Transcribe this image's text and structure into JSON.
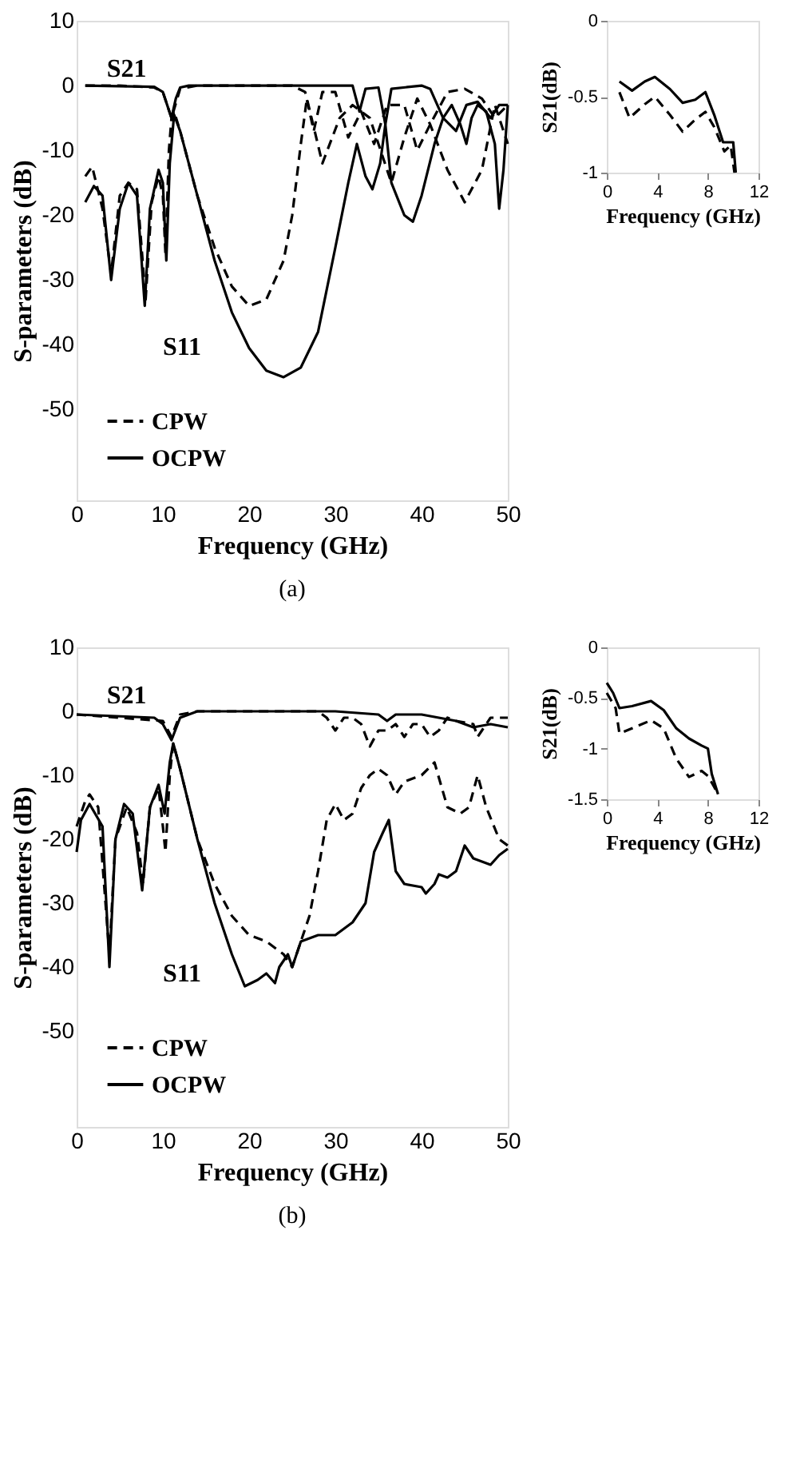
{
  "chart_data": [
    {
      "type": "line",
      "xlabel": "Frequency (GHz)",
      "ylabel": "S-parameters (dB)",
      "xlim": [
        0,
        50
      ],
      "ylim": [
        -64,
        10
      ],
      "xticks": [
        0,
        10,
        20,
        30,
        40,
        50
      ],
      "yticks": [
        10,
        0,
        -10,
        -20,
        -30,
        -40,
        -50
      ],
      "grid": false,
      "legend": "bottom left",
      "annotations": [
        "S21",
        "S11",
        "(a)"
      ],
      "series": [
        {
          "name": "CPW",
          "color": "#000000",
          "line_style": "dashed",
          "x": [
            1,
            5,
            9,
            10,
            11,
            12,
            14,
            20,
            25,
            26.5,
            27.5,
            28.5,
            30,
            31.5,
            33,
            34.5,
            36,
            38,
            39.5,
            41,
            43,
            45,
            47,
            48.5,
            50
          ],
          "values": [
            0,
            0,
            -0.3,
            -1,
            -5,
            -0.5,
            0,
            0,
            0,
            -1,
            -7,
            -1,
            -1,
            -8,
            -4,
            -9,
            -3,
            -3,
            -10,
            -6,
            -1,
            -0.5,
            -2,
            -5,
            -3
          ]
        },
        {
          "color": "#000000",
          "line_style": "dashed",
          "x": [
            1,
            1.8,
            3,
            4,
            5,
            6,
            7,
            8,
            8.7,
            9.5,
            10,
            10.3,
            10.7,
            11,
            11.3,
            12,
            14,
            16,
            18,
            20,
            22,
            24,
            25,
            26,
            26.7,
            28.5,
            30.5,
            32,
            34,
            36.5,
            38,
            39.5,
            41,
            43,
            45,
            47,
            48.5,
            50
          ],
          "values": [
            -14,
            -12.5,
            -19,
            -29,
            -17,
            -15,
            -16,
            -33,
            -18,
            -14,
            -17,
            -26,
            -10,
            -5,
            -4,
            -7,
            -17,
            -25,
            -31,
            -34,
            -33,
            -27,
            -20,
            -9,
            -2,
            -12,
            -5,
            -3,
            -5,
            -15,
            -8,
            -2,
            -6,
            -13,
            -18,
            -13,
            -3,
            -9
          ]
        },
        {
          "name": "OCPW",
          "color": "#000000",
          "line_style": "solid",
          "x": [
            1,
            9,
            10,
            11,
            11.5,
            12,
            13,
            32,
            32.8,
            33.5,
            35,
            35.8,
            36.5,
            40,
            41,
            42.5,
            44,
            45.2,
            46.5,
            48,
            49,
            50
          ],
          "values": [
            0,
            -0.2,
            -1,
            -5,
            -2,
            -0.3,
            0,
            0,
            -4,
            -0.5,
            -0.3,
            -6,
            -0.5,
            0,
            -0.5,
            -5,
            -7,
            -3,
            -2.5,
            -5,
            -3,
            -3
          ]
        },
        {
          "color": "#000000",
          "line_style": "solid",
          "x": [
            1,
            2,
            3,
            4,
            5,
            6,
            7,
            7.9,
            8.5,
            9.5,
            10,
            10.4,
            10.8,
            11.3,
            12,
            14,
            16,
            18,
            20,
            22,
            24,
            26,
            28,
            30,
            31.5,
            32.5,
            33.5,
            34.3,
            35.2,
            35.8,
            36.5,
            38,
            39,
            40,
            41.5,
            42.5,
            43.5,
            44.5,
            45.2,
            45.8,
            46.5,
            47.5,
            48.5,
            49,
            49.5,
            50
          ],
          "values": [
            -18,
            -15.5,
            -17,
            -30,
            -19,
            -15,
            -17,
            -34,
            -19,
            -13,
            -15,
            -27,
            -12,
            -4.5,
            -7,
            -17,
            -27,
            -35,
            -40.5,
            -44,
            -45,
            -43.5,
            -38,
            -25,
            -15,
            -9,
            -14,
            -16,
            -12,
            -6,
            -15,
            -20,
            -21,
            -17,
            -9,
            -5,
            -3,
            -6,
            -9,
            -5,
            -3,
            -4,
            -9,
            -19,
            -13,
            -3
          ]
        }
      ]
    },
    {
      "type": "line",
      "xlabel": "Frequency (GHz)",
      "ylabel": "S21(dB)",
      "xlim": [
        0,
        12
      ],
      "ylim": [
        -1,
        0
      ],
      "xticks": [
        0,
        4,
        8,
        12
      ],
      "yticks": [
        0,
        -0.5,
        -1
      ],
      "grid": false,
      "series": [
        {
          "color": "#000000",
          "line_style": "dashed",
          "x": [
            1,
            1.8,
            3,
            3.8,
            5,
            6,
            7,
            7.8,
            8.5,
            9.3,
            9.8,
            10.1
          ],
          "values": [
            -0.47,
            -0.64,
            -0.55,
            -0.5,
            -0.62,
            -0.73,
            -0.65,
            -0.6,
            -0.7,
            -0.86,
            -0.82,
            -1
          ]
        },
        {
          "color": "#000000",
          "line_style": "solid",
          "x": [
            1,
            2,
            3,
            3.8,
            5,
            6,
            7,
            7.8,
            8.5,
            9.2,
            10,
            10.2
          ],
          "values": [
            -0.4,
            -0.46,
            -0.4,
            -0.37,
            -0.45,
            -0.54,
            -0.52,
            -0.47,
            -0.62,
            -0.8,
            -0.8,
            -1
          ]
        }
      ]
    },
    {
      "type": "line",
      "xlabel": "Frequency (GHz)",
      "ylabel": "S-parameters (dB)",
      "xlim": [
        0,
        50
      ],
      "ylim": [
        -65,
        10
      ],
      "xticks": [
        0,
        10,
        20,
        30,
        40,
        50
      ],
      "yticks": [
        10,
        0,
        -10,
        -20,
        -30,
        -40,
        -50
      ],
      "grid": false,
      "legend": "bottom left",
      "annotations": [
        "S21",
        "S11",
        "(b)"
      ],
      "series": [
        {
          "name": "CPW",
          "color": "#000000",
          "line_style": "dashed",
          "x": [
            0,
            10,
            11,
            12,
            14,
            28,
            29,
            30,
            31,
            32,
            33,
            34,
            35,
            36,
            37,
            38,
            39,
            40,
            41,
            42,
            43,
            44,
            46,
            46.5,
            47,
            48,
            50
          ],
          "values": [
            -0.5,
            -1.5,
            -4,
            -0.5,
            0,
            0,
            -1,
            -3,
            -1,
            -1,
            -2,
            -5.5,
            -3,
            -3,
            -2,
            -4,
            -2,
            -2,
            -4,
            -3,
            -1,
            -1.5,
            -2,
            -4,
            -3,
            -1,
            -1
          ]
        },
        {
          "color": "#000000",
          "line_style": "dashed",
          "x": [
            0,
            1,
            1.5,
            2.5,
            3.8,
            4.5,
            5.8,
            7,
            7.7,
            8.5,
            9.5,
            10,
            10.3,
            10.8,
            11.2,
            12,
            14,
            16,
            18,
            20,
            22,
            24,
            25,
            26,
            27,
            28,
            29,
            30,
            31,
            32,
            33,
            34,
            35,
            36,
            37,
            38,
            40,
            41.5,
            43,
            44.5,
            45.5,
            46.5,
            47.5,
            49,
            50
          ],
          "values": [
            -18,
            -14,
            -13,
            -15,
            -38,
            -20,
            -15,
            -19,
            -27,
            -15,
            -12,
            -18,
            -22,
            -10,
            -5,
            -9,
            -20,
            -27,
            -32,
            -35,
            -36,
            -38,
            -40,
            -36,
            -32,
            -25,
            -17,
            -14.5,
            -17,
            -16,
            -12,
            -10,
            -9,
            -10,
            -13,
            -11,
            -10,
            -8,
            -15,
            -16,
            -15,
            -10,
            -15,
            -20,
            -21
          ]
        },
        {
          "name": "OCPW",
          "color": "#000000",
          "line_style": "solid",
          "x": [
            0,
            9,
            10,
            11,
            12,
            14,
            30,
            35,
            36,
            37,
            40,
            44,
            46,
            48,
            50
          ],
          "values": [
            -0.5,
            -1,
            -2,
            -4.5,
            -1,
            0,
            0,
            -0.5,
            -1.5,
            -0.5,
            -0.5,
            -1.5,
            -2.5,
            -2,
            -2.5
          ]
        },
        {
          "color": "#000000",
          "line_style": "solid",
          "x": [
            0,
            0.5,
            1.5,
            3,
            3.8,
            4.5,
            5.5,
            6.5,
            7.6,
            8.5,
            9.5,
            10.2,
            10.8,
            11.2,
            12,
            14,
            16,
            18,
            19.5,
            21,
            22,
            23,
            23.5,
            24.5,
            25,
            26,
            28,
            30,
            32,
            33.5,
            34.5,
            35.5,
            36.2,
            37,
            38,
            40,
            40.5,
            41.5,
            42,
            43,
            44,
            45,
            46,
            47,
            48,
            49,
            50
          ],
          "values": [
            -22,
            -17,
            -14.5,
            -18,
            -40,
            -20,
            -14.5,
            -16,
            -28,
            -15,
            -11.5,
            -16,
            -8,
            -5,
            -9,
            -20,
            -30,
            -38,
            -43,
            -42,
            -41,
            -42.5,
            -40,
            -38,
            -40,
            -36,
            -35,
            -35,
            -33,
            -30,
            -22,
            -19,
            -17,
            -25,
            -27,
            -27.5,
            -28.5,
            -27,
            -25.5,
            -26,
            -25,
            -21,
            -23,
            -23.5,
            -24,
            -22.5,
            -21.5
          ]
        }
      ]
    },
    {
      "type": "line",
      "xlabel": "Frequency (GHz)",
      "ylabel": "S21(dB)",
      "xlim": [
        0,
        12
      ],
      "ylim": [
        -1.5,
        0
      ],
      "xticks": [
        0,
        4,
        8,
        12
      ],
      "yticks": [
        0,
        -0.5,
        -1,
        -1.5
      ],
      "grid": false,
      "series": [
        {
          "color": "#000000",
          "line_style": "dashed",
          "x": [
            0,
            0.7,
            1,
            2,
            3.5,
            4.5,
            5.5,
            6.5,
            7.5,
            8,
            8.5,
            8.8
          ],
          "values": [
            -0.45,
            -0.6,
            -0.85,
            -0.8,
            -0.72,
            -0.8,
            -1.1,
            -1.28,
            -1.22,
            -1.27,
            -1.38,
            -1.45
          ]
        },
        {
          "color": "#000000",
          "line_style": "solid",
          "x": [
            0,
            0.5,
            1,
            2,
            3.5,
            4.5,
            5.5,
            6.5,
            7.5,
            8,
            8.3,
            8.8
          ],
          "values": [
            -0.35,
            -0.45,
            -0.6,
            -0.58,
            -0.53,
            -0.62,
            -0.8,
            -0.9,
            -0.97,
            -1,
            -1.25,
            -1.45
          ]
        }
      ]
    }
  ]
}
